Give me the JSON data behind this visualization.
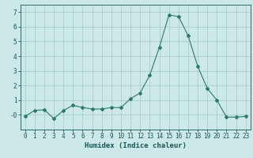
{
  "x": [
    0,
    1,
    2,
    3,
    4,
    5,
    6,
    7,
    8,
    9,
    10,
    11,
    12,
    13,
    14,
    15,
    16,
    17,
    18,
    19,
    20,
    21,
    22,
    23
  ],
  "y": [
    -0.1,
    0.3,
    0.35,
    -0.25,
    0.3,
    0.65,
    0.5,
    0.4,
    0.4,
    0.5,
    0.5,
    1.1,
    1.5,
    2.7,
    4.6,
    6.8,
    6.7,
    5.4,
    3.3,
    1.8,
    1.0,
    -0.15,
    -0.15,
    -0.1
  ],
  "line_color": "#2d7a6a",
  "marker": "D",
  "marker_size": 2,
  "bg_color": "#cce8e8",
  "grid_color": "#aacccc",
  "xlabel": "Humidex (Indice chaleur)",
  "xlim": [
    -0.5,
    23.5
  ],
  "ylim": [
    -1.0,
    7.5
  ],
  "yticks": [
    0,
    1,
    2,
    3,
    4,
    5,
    6,
    7
  ],
  "ytick_labels": [
    "-0",
    "1",
    "2",
    "3",
    "4",
    "5",
    "6",
    "7"
  ],
  "xtick_labels": [
    "0",
    "1",
    "2",
    "3",
    "4",
    "5",
    "6",
    "7",
    "8",
    "9",
    "10",
    "11",
    "12",
    "13",
    "14",
    "15",
    "16",
    "17",
    "18",
    "19",
    "20",
    "21",
    "22",
    "23"
  ],
  "tick_color": "#1a5555",
  "label_fontsize": 5.5,
  "xlabel_fontsize": 6.5
}
